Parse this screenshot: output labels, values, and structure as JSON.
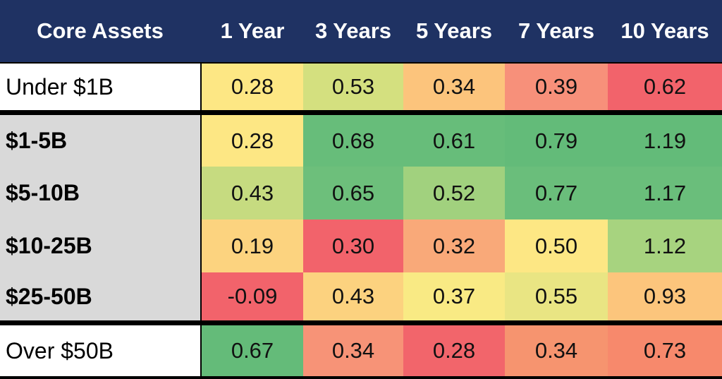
{
  "chart_data": {
    "type": "heatmap",
    "title": "",
    "row_header": "Core Assets",
    "columns": [
      "1 Year",
      "3 Years",
      "5 Years",
      "7 Years",
      "10 Years"
    ],
    "rows": [
      {
        "label": "Under $1B",
        "bold": false,
        "group": "top",
        "values": [
          "0.28",
          "0.53",
          "0.34",
          "0.39",
          "0.62"
        ],
        "colors": [
          "#fde784",
          "#d4e07f",
          "#fcc47c",
          "#f7907a",
          "#f2636b"
        ]
      },
      {
        "label": "$1-5B",
        "bold": true,
        "group": "middle",
        "values": [
          "0.28",
          "0.68",
          "0.61",
          "0.79",
          "1.19"
        ],
        "colors": [
          "#fde784",
          "#67bd7a",
          "#67bd7a",
          "#63bb79",
          "#63bb79"
        ]
      },
      {
        "label": "$5-10B",
        "bold": true,
        "group": "middle",
        "values": [
          "0.43",
          "0.65",
          "0.52",
          "0.77",
          "1.17"
        ],
        "colors": [
          "#c6db80",
          "#6dbf7b",
          "#a1d17e",
          "#6abe7b",
          "#6abe7b"
        ]
      },
      {
        "label": "$10-25B",
        "bold": true,
        "group": "middle",
        "values": [
          "0.19",
          "0.30",
          "0.32",
          "0.50",
          "1.12"
        ],
        "colors": [
          "#fcd37f",
          "#f2636b",
          "#f9a979",
          "#fde784",
          "#a7d37f"
        ]
      },
      {
        "label": "$25-50B",
        "bold": true,
        "group": "middle",
        "values": [
          "-0.09",
          "0.43",
          "0.37",
          "0.55",
          "0.93"
        ],
        "colors": [
          "#f2636b",
          "#fcd27f",
          "#f9ea84",
          "#e9e583",
          "#fcc57c"
        ]
      },
      {
        "label": "Over $50B",
        "bold": false,
        "group": "bottom",
        "values": [
          "0.67",
          "0.34",
          "0.28",
          "0.34",
          "0.73"
        ],
        "colors": [
          "#64bb79",
          "#f79377",
          "#f2656b",
          "#f6946f",
          "#f7896c"
        ]
      }
    ],
    "header_color": "#1f3263",
    "label_colors": {
      "top": "#ffffff",
      "middle": "#d9d9d9",
      "bottom": "#ffffff"
    }
  }
}
